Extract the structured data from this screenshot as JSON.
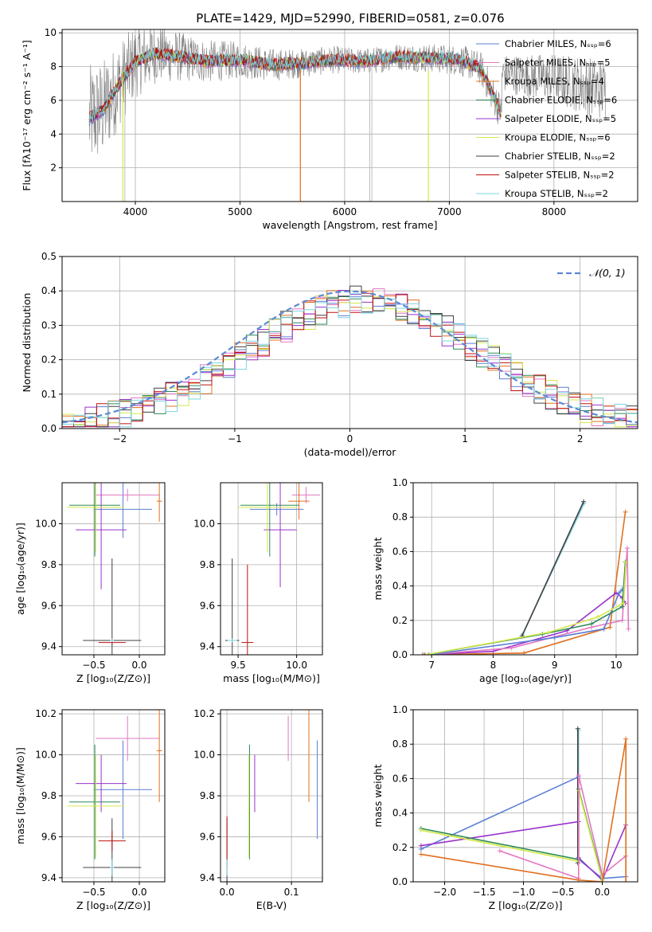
{
  "figure": {
    "title": "PLATE=1429, MJD=52990, FIBERID=0581, z=0.076"
  },
  "chart_data": [
    {
      "id": "spectrum",
      "type": "line",
      "xlabel": "wavelength [Angstrom, rest frame]",
      "ylabel": "Flux [fλ10⁻¹⁷ erg cm⁻² s⁻¹ A⁻¹]",
      "xlim": [
        3300,
        8800
      ],
      "ylim": [
        0,
        10.2
      ],
      "xticks": [
        4000,
        5000,
        6000,
        7000,
        8000
      ],
      "yticks": [
        2,
        4,
        6,
        8,
        10
      ],
      "legend": "right",
      "series": [
        {
          "name": "Chabrier MILES, N_SSP=6",
          "color": "#5b7fd4"
        },
        {
          "name": "Salpeter MILES, N_SSP=5",
          "color": "#e377c2"
        },
        {
          "name": "Kroupa MILES, N_SSP=4",
          "color": "#e07020"
        },
        {
          "name": "Chabrier ELODIE, N_SSP=6",
          "color": "#2e8b57"
        },
        {
          "name": "Salpeter ELODIE, N_SSP=5",
          "color": "#9932cc"
        },
        {
          "name": "Kroupa ELODIE, N_SSP=6",
          "color": "#d4e84a"
        },
        {
          "name": "Chabrier STELIB, N_SSP=2",
          "color": "#404040"
        },
        {
          "name": "Salpeter STELIB, N_SSP=2",
          "color": "#c01010"
        },
        {
          "name": "Kroupa STELIB, N_SSP=2",
          "color": "#7fd4e0"
        }
      ],
      "model_curve": {
        "x": [
          3560,
          3700,
          3850,
          4000,
          4200,
          4400,
          4700,
          5000,
          5300,
          5600,
          5900,
          6200,
          6500,
          6800,
          7100,
          7300,
          7500
        ],
        "y": [
          4.9,
          5.5,
          7.0,
          8.3,
          8.8,
          8.6,
          8.3,
          8.4,
          8.1,
          8.2,
          8.4,
          8.3,
          8.6,
          8.5,
          8.4,
          7.9,
          5.2
        ]
      },
      "data_band": {
        "x": [
          3560,
          3700,
          3850,
          4000,
          4200,
          4500,
          5000,
          5500,
          6000,
          6500,
          7000,
          7300,
          7600,
          8000,
          8500
        ],
        "amp": [
          3.2,
          3.0,
          2.5,
          2.2,
          1.8,
          1.4,
          1.1,
          0.9,
          0.8,
          0.8,
          0.9,
          1.0,
          1.2,
          1.5,
          1.9
        ]
      }
    },
    {
      "id": "residuals",
      "type": "step",
      "xlabel": "(data-model)/error",
      "ylabel": "Normed distribution",
      "xlim": [
        -2.5,
        2.5
      ],
      "ylim": [
        0,
        0.5
      ],
      "xticks": [
        -2,
        -1,
        0,
        1,
        2
      ],
      "yticks": [
        0.0,
        0.1,
        0.2,
        0.3,
        0.4,
        0.5
      ],
      "legend": "top-right",
      "reference": {
        "name": "𝒩(0, 1)",
        "color": "#5b8ad4"
      }
    },
    {
      "id": "age_vs_Z",
      "type": "errorbar",
      "xlabel": "Z [log₁₀(Z/Z⊙)]",
      "ylabel": "age  [log₁₀(age/yr)]",
      "xlim": [
        -0.85,
        0.28
      ],
      "ylim": [
        9.36,
        10.2
      ],
      "xticks": [
        -0.5,
        0.0
      ],
      "yticks": [
        9.4,
        9.6,
        9.8,
        10.0
      ],
      "points": [
        {
          "x": -0.18,
          "y": 10.07,
          "xerr": 0.32,
          "yerr": 0.14,
          "color": "#5b7fd4"
        },
        {
          "x": -0.13,
          "y": 10.14,
          "xerr": 0.35,
          "yerr": 0.03,
          "color": "#e377c2"
        },
        {
          "x": 0.22,
          "y": 10.11,
          "xerr": 0.03,
          "yerr": 0.1,
          "color": "#e07020"
        },
        {
          "x": -0.49,
          "y": 10.09,
          "xerr": 0.28,
          "yerr": 0.25,
          "color": "#2e8b57"
        },
        {
          "x": -0.42,
          "y": 9.97,
          "xerr": 0.28,
          "yerr": 0.29,
          "color": "#9932cc"
        },
        {
          "x": -0.48,
          "y": 10.08,
          "xerr": 0.31,
          "yerr": 0.22,
          "color": "#d4e84a"
        },
        {
          "x": -0.3,
          "y": 9.43,
          "xerr": 0.32,
          "yerr": 0.4,
          "color": "#404040"
        },
        {
          "x": -0.3,
          "y": 9.42,
          "xerr": 0.15,
          "yerr": 0.01,
          "color": "#c01010"
        },
        {
          "x": -0.3,
          "y": 9.43,
          "xerr": 0.02,
          "yerr": 0.01,
          "color": "#7fd4e0"
        }
      ]
    },
    {
      "id": "age_vs_mass",
      "type": "errorbar",
      "xlabel": "mass [log₁₀(M/M⊙)]",
      "ylabel": "",
      "xlim": [
        9.35,
        10.22
      ],
      "ylim": [
        9.36,
        10.2
      ],
      "xticks": [
        9.5,
        10.0
      ],
      "yticks": [
        9.4,
        9.6,
        9.8,
        10.0
      ],
      "points": [
        {
          "x": 9.83,
          "y": 10.07,
          "xerr": 0.23,
          "yerr": 0.03,
          "color": "#5b7fd4"
        },
        {
          "x": 10.08,
          "y": 10.14,
          "xerr": 0.12,
          "yerr": 0.04,
          "color": "#e377c2"
        },
        {
          "x": 10.02,
          "y": 10.11,
          "xerr": 0.09,
          "yerr": 0.09,
          "color": "#e07020"
        },
        {
          "x": 9.77,
          "y": 10.09,
          "xerr": 0.25,
          "yerr": 0.25,
          "color": "#2e8b57"
        },
        {
          "x": 9.86,
          "y": 9.97,
          "xerr": 0.14,
          "yerr": 0.28,
          "color": "#9932cc"
        },
        {
          "x": 9.75,
          "y": 10.08,
          "xerr": 0.25,
          "yerr": 0.22,
          "color": "#d4e84a"
        },
        {
          "x": 9.45,
          "y": 9.43,
          "xerr": 0.06,
          "yerr": 0.4,
          "color": "#404040"
        },
        {
          "x": 9.58,
          "y": 9.42,
          "xerr": 0.05,
          "yerr": 0.38,
          "color": "#c01010"
        },
        {
          "x": 9.45,
          "y": 9.43,
          "xerr": 0.04,
          "yerr": 0.01,
          "color": "#7fd4e0"
        }
      ]
    },
    {
      "id": "weight_vs_age",
      "type": "line",
      "xlabel": "age  [log₁₀(age/yr)]",
      "ylabel": "mass weight",
      "xlim": [
        6.7,
        10.35
      ],
      "ylim": [
        0,
        1
      ],
      "xticks": [
        7,
        8,
        9,
        10
      ],
      "yticks": [
        0.0,
        0.2,
        0.4,
        0.6,
        0.8,
        1.0
      ],
      "series": [
        {
          "color": "#7fd4e0",
          "x": [
            8.48,
            9.48
          ],
          "y": [
            0.12,
            0.88
          ]
        },
        {
          "color": "#404040",
          "x": [
            8.47,
            9.47
          ],
          "y": [
            0.11,
            0.89
          ]
        },
        {
          "color": "#e07020",
          "x": [
            6.85,
            8.5,
            9.9,
            10.15
          ],
          "y": [
            0.0,
            0.01,
            0.16,
            0.83
          ]
        },
        {
          "color": "#9932cc",
          "x": [
            6.88,
            8.0,
            9.2,
            10.0,
            10.1,
            10.15
          ],
          "y": [
            0.0,
            0.02,
            0.14,
            0.36,
            0.33,
            0.3
          ]
        },
        {
          "color": "#e377c2",
          "x": [
            6.9,
            8.3,
            9.6,
            10.1,
            10.18,
            10.2
          ],
          "y": [
            0.0,
            0.04,
            0.16,
            0.2,
            0.62,
            0.15
          ]
        },
        {
          "color": "#5b7fd4",
          "x": [
            6.95,
            9.0,
            9.8,
            10.05,
            10.1
          ],
          "y": [
            0.0,
            0.1,
            0.15,
            0.36,
            0.38
          ]
        },
        {
          "color": "#2e8b57",
          "x": [
            6.9,
            8.8,
            9.6,
            10.1,
            10.15
          ],
          "y": [
            0.0,
            0.12,
            0.18,
            0.28,
            0.54
          ]
        },
        {
          "color": "#d4e84a",
          "x": [
            6.9,
            8.9,
            9.7,
            10.12,
            10.16
          ],
          "y": [
            0.0,
            0.13,
            0.22,
            0.3,
            0.54
          ]
        }
      ]
    },
    {
      "id": "mass_vs_Z",
      "type": "errorbar",
      "xlabel": "Z [log₁₀(Z/Z⊙)]",
      "ylabel": "mass [log₁₀(M/M⊙)]",
      "xlim": [
        -0.85,
        0.28
      ],
      "ylim": [
        9.38,
        10.22
      ],
      "xticks": [
        -0.5,
        0.0
      ],
      "yticks": [
        9.4,
        9.6,
        9.8,
        10.0,
        10.2
      ],
      "points": [
        {
          "x": -0.18,
          "y": 9.83,
          "xerr": 0.32,
          "yerr": 0.24,
          "color": "#5b7fd4"
        },
        {
          "x": -0.13,
          "y": 10.08,
          "xerr": 0.35,
          "yerr": 0.11,
          "color": "#e377c2"
        },
        {
          "x": 0.22,
          "y": 10.02,
          "xerr": 0.03,
          "yerr": 0.25,
          "color": "#e07020"
        },
        {
          "x": -0.49,
          "y": 9.77,
          "xerr": 0.28,
          "yerr": 0.28,
          "color": "#2e8b57"
        },
        {
          "x": -0.42,
          "y": 9.86,
          "xerr": 0.28,
          "yerr": 0.14,
          "color": "#9932cc"
        },
        {
          "x": -0.48,
          "y": 9.75,
          "xerr": 0.31,
          "yerr": 0.25,
          "color": "#d4e84a"
        },
        {
          "x": -0.3,
          "y": 9.45,
          "xerr": 0.32,
          "yerr": 0.24,
          "color": "#404040"
        },
        {
          "x": -0.3,
          "y": 9.58,
          "xerr": 0.15,
          "yerr": 0.05,
          "color": "#c01010"
        },
        {
          "x": -0.3,
          "y": 9.45,
          "xerr": 0.02,
          "yerr": 0.04,
          "color": "#7fd4e0"
        }
      ]
    },
    {
      "id": "mass_vs_ebv",
      "type": "errorbar",
      "xlabel": "E(B-V)",
      "ylabel": "",
      "xlim": [
        -0.01,
        0.148
      ],
      "ylim": [
        9.38,
        10.22
      ],
      "xticks": [
        0.0,
        0.1
      ],
      "yticks": [
        9.4,
        9.6,
        9.8,
        10.0,
        10.2
      ],
      "points": [
        {
          "x": 0.14,
          "y": 9.83,
          "xerr": 0.0,
          "yerr": 0.24,
          "color": "#5b7fd4"
        },
        {
          "x": 0.095,
          "y": 10.08,
          "xerr": 0.0,
          "yerr": 0.11,
          "color": "#e377c2"
        },
        {
          "x": 0.127,
          "y": 10.02,
          "xerr": 0.0,
          "yerr": 0.25,
          "color": "#e07020"
        },
        {
          "x": 0.035,
          "y": 9.77,
          "xerr": 0.0,
          "yerr": 0.28,
          "color": "#2e8b57"
        },
        {
          "x": 0.043,
          "y": 9.86,
          "xerr": 0.0,
          "yerr": 0.14,
          "color": "#9932cc"
        },
        {
          "x": 0.034,
          "y": 9.75,
          "xerr": 0.0,
          "yerr": 0.25,
          "color": "#d4e84a"
        },
        {
          "x": 0.0,
          "y": 9.45,
          "xerr": 0.0,
          "yerr": 0.24,
          "color": "#404040"
        },
        {
          "x": 0.0,
          "y": 9.58,
          "xerr": 0.0,
          "yerr": 0.12,
          "color": "#c01010"
        },
        {
          "x": 0.0,
          "y": 9.45,
          "xerr": 0.0,
          "yerr": 0.04,
          "color": "#7fd4e0"
        }
      ]
    },
    {
      "id": "weight_vs_Z",
      "type": "line",
      "xlabel": "Z [log₁₀(Z/Z⊙)]",
      "ylabel": "mass weight",
      "xlim": [
        -2.4,
        0.45
      ],
      "ylim": [
        0,
        1
      ],
      "xticks": [
        -2.0,
        -1.5,
        -1.0,
        -0.5,
        0.0
      ],
      "yticks": [
        0.0,
        0.2,
        0.4,
        0.6,
        0.8,
        1.0
      ],
      "series": [
        {
          "color": "#7fd4e0",
          "x": [
            -0.3,
            -0.3
          ],
          "y": [
            0.12,
            0.88
          ]
        },
        {
          "color": "#404040",
          "x": [
            -0.31,
            -0.31
          ],
          "y": [
            0.11,
            0.89
          ]
        },
        {
          "color": "#5b7fd4",
          "x": [
            -2.3,
            -0.3,
            -0.3,
            0.0,
            0.3
          ],
          "y": [
            0.19,
            0.61,
            0.13,
            0.02,
            0.03
          ]
        },
        {
          "color": "#9932cc",
          "x": [
            -2.3,
            -0.3,
            -0.3,
            0.0,
            0.3
          ],
          "y": [
            0.21,
            0.35,
            0.14,
            0.01,
            0.33
          ]
        },
        {
          "color": "#2e8b57",
          "x": [
            -2.3,
            -0.3,
            -0.3,
            0.0
          ],
          "y": [
            0.31,
            0.13,
            0.54,
            0.02
          ]
        },
        {
          "color": "#d4e84a",
          "x": [
            -2.3,
            -0.3,
            -0.3,
            0.0
          ],
          "y": [
            0.3,
            0.12,
            0.53,
            0.01
          ]
        },
        {
          "color": "#e377c2",
          "x": [
            -1.3,
            -0.3,
            -0.3,
            0.0,
            0.3,
            0.3
          ],
          "y": [
            0.18,
            0.02,
            0.62,
            0.04,
            0.15,
            0.0
          ]
        },
        {
          "color": "#e07020",
          "x": [
            -2.3,
            -0.3,
            0.0,
            0.3,
            0.3
          ],
          "y": [
            0.16,
            0.01,
            0.0,
            0.83,
            0.0
          ]
        }
      ]
    }
  ]
}
